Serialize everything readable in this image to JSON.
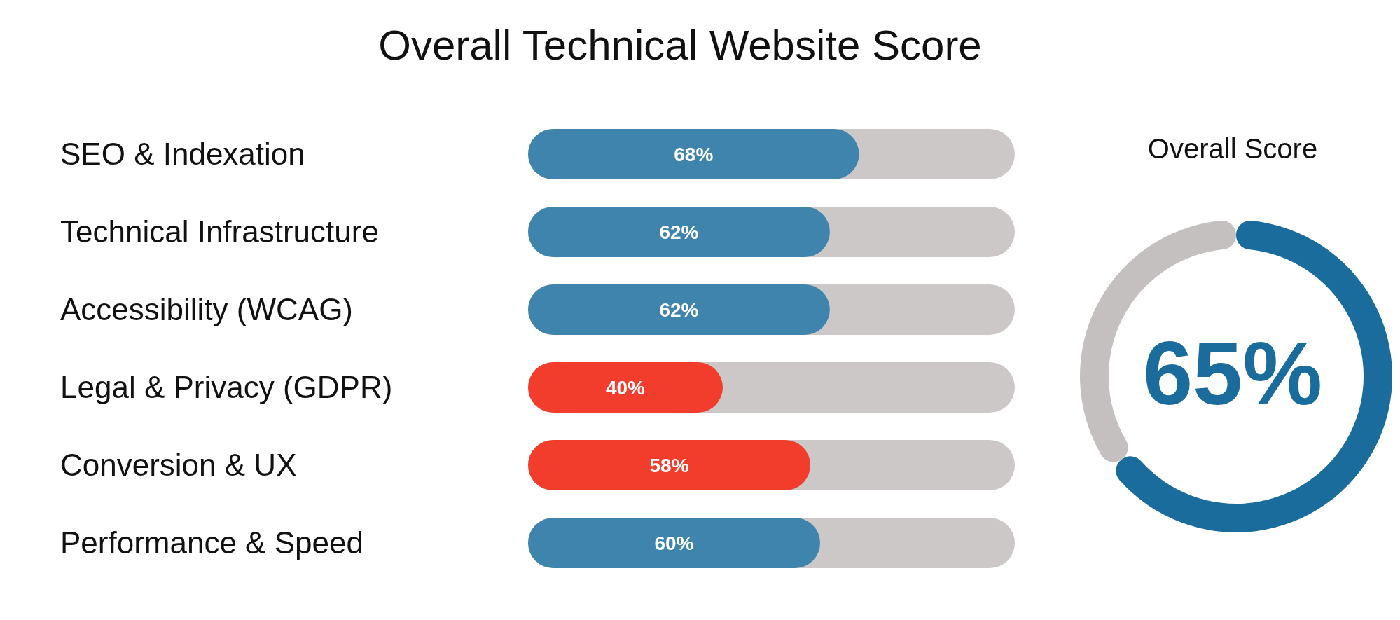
{
  "chart_data": [
    {
      "type": "bar",
      "title": "Overall Technical Website Score",
      "orientation": "horizontal",
      "categories": [
        "SEO & Indexation",
        "Technical Infrastructure",
        "Accessibility (WCAG)",
        "Legal & Privacy (GDPR)",
        "Conversion & UX",
        "Performance & Speed"
      ],
      "values": [
        68,
        62,
        62,
        40,
        58,
        60
      ],
      "colors": [
        "#3f84ad",
        "#3f84ad",
        "#3f84ad",
        "#f23c2c",
        "#f23c2c",
        "#3f84ad"
      ],
      "value_labels": [
        "68%",
        "62%",
        "62%",
        "40%",
        "58%",
        "60%"
      ],
      "xlim": [
        0,
        100
      ],
      "tick_labels": "y"
    },
    {
      "type": "donut",
      "title": "Overall Score",
      "categories": [
        null,
        null
      ],
      "values": [
        65,
        35
      ],
      "colors": [
        "#1a6c9c",
        "#c4c0bf"
      ],
      "annotations": [
        "65%"
      ]
    }
  ]
}
